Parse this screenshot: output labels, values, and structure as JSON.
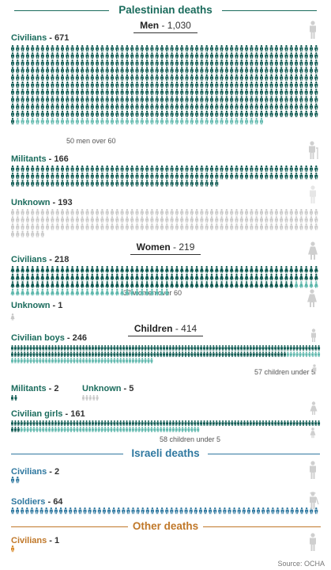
{
  "title": "Palestinian deaths",
  "source": "Source: OCHA",
  "colors": {
    "pal_title": "#1a6b5c",
    "pal_dark": "#0e5a52",
    "pal_light": "#5fb8ad",
    "unknown": "#c8c8c8",
    "isr_title": "#2f78a0",
    "isr": "#2f78a0",
    "other_title": "#c0782a",
    "other": "#d98a2b",
    "big_icon": "#cfcfcf"
  },
  "sections": {
    "palestinian": {
      "title": "Palestinian deaths"
    },
    "israeli": {
      "title": "Israeli deaths"
    },
    "other": {
      "title": "Other deaths"
    }
  },
  "subheads": {
    "men": {
      "label": "Men",
      "value": " - 1,030"
    },
    "women": {
      "label": "Women",
      "value": " - 219"
    },
    "children": {
      "label": "Children",
      "value": " - 414"
    }
  },
  "chart_data": {
    "type": "pictogram",
    "unit": "one figure = one death",
    "groups": [
      {
        "key": "men_civ",
        "label": "Civilians",
        "value": 671,
        "highlight_count": 50,
        "note": "50 men over 60"
      },
      {
        "key": "men_mil",
        "label": "Militants",
        "value": 166
      },
      {
        "key": "men_unk",
        "label": "Unknown",
        "value": 193
      },
      {
        "key": "wom_civ",
        "label": "Civilians",
        "value": 218,
        "highlight_count": 37,
        "note": "37 women over 60"
      },
      {
        "key": "wom_unk",
        "label": "Unknown",
        "value": 1
      },
      {
        "key": "boys",
        "label": "Civilian boys",
        "value": 246,
        "highlight_count": 57,
        "note": "57 children under 5"
      },
      {
        "key": "ch_mil",
        "label": "Militants",
        "value": 2
      },
      {
        "key": "ch_unk",
        "label": "Unknown",
        "value": 5
      },
      {
        "key": "girls",
        "label": "Civilian girls",
        "value": 161,
        "highlight_count": 58,
        "note": "58 children under 5"
      },
      {
        "key": "isr_civ",
        "label": "Civilians",
        "value": 2
      },
      {
        "key": "isr_sol",
        "label": "Soldiers",
        "value": 64
      },
      {
        "key": "oth_civ",
        "label": "Civilians",
        "value": 1
      }
    ]
  }
}
